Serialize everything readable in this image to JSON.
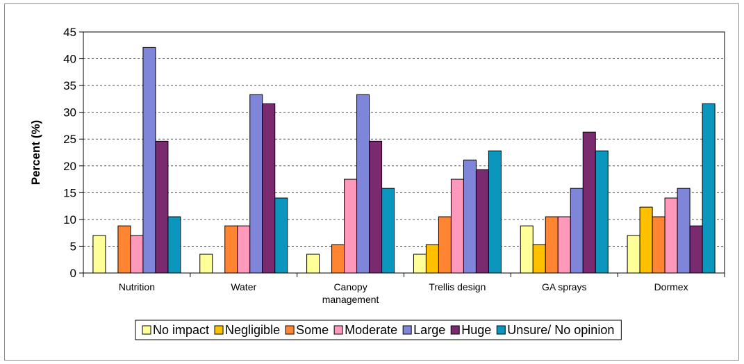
{
  "chart_data": {
    "type": "bar",
    "title": "",
    "xlabel": "",
    "ylabel": "Percent (%)",
    "ylim": [
      0,
      45
    ],
    "yticks": [
      0,
      5,
      10,
      15,
      20,
      25,
      30,
      35,
      40,
      45
    ],
    "grid": true,
    "legend_position": "bottom",
    "categories": [
      [
        "Nutrition"
      ],
      [
        "Water"
      ],
      [
        "Canopy",
        "management"
      ],
      [
        "Trellis design"
      ],
      [
        "GA sprays"
      ],
      [
        "Dormex"
      ]
    ],
    "series": [
      {
        "name": "No impact",
        "color": "#ffff99",
        "values": [
          7.0,
          3.5,
          3.5,
          3.5,
          8.8,
          7.0
        ]
      },
      {
        "name": "Negligible",
        "color": "#ffc000",
        "values": [
          0,
          0,
          0,
          5.3,
          5.3,
          12.3
        ]
      },
      {
        "name": "Some",
        "color": "#ff8533",
        "values": [
          8.8,
          8.8,
          5.3,
          10.5,
          10.5,
          10.5
        ]
      },
      {
        "name": "Moderate",
        "color": "#ff99bb",
        "values": [
          7.0,
          8.8,
          17.5,
          17.5,
          10.5,
          14.0
        ]
      },
      {
        "name": "Large",
        "color": "#7f86d9",
        "values": [
          42.1,
          33.3,
          33.3,
          21.1,
          15.8,
          15.8
        ]
      },
      {
        "name": "Huge",
        "color": "#7a2a6e",
        "values": [
          24.6,
          31.6,
          24.6,
          19.3,
          26.3,
          8.8
        ]
      },
      {
        "name": "Unsure/ No opinion",
        "color": "#0b97bd",
        "values": [
          10.5,
          14.0,
          15.8,
          22.8,
          22.8,
          31.6
        ]
      }
    ]
  }
}
